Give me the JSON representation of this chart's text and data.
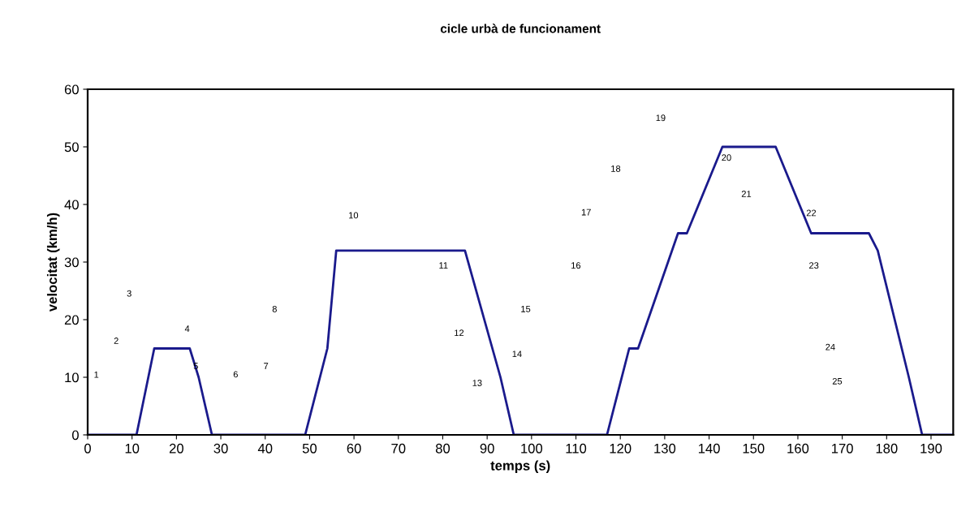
{
  "chart_data": {
    "type": "line",
    "title": "cicle urbà de funcionament",
    "xlabel": "temps (s)",
    "ylabel": "velocitat (km/h)",
    "x": [
      0,
      11,
      15,
      23,
      25,
      28,
      49,
      54,
      56,
      85,
      93,
      96,
      117,
      122,
      124,
      133,
      135,
      143,
      155,
      163,
      176,
      178,
      185,
      188,
      195
    ],
    "series": [
      {
        "color": "#1a1a8c",
        "values": [
          0,
          0,
          15,
          15,
          10,
          0,
          0,
          15,
          32,
          32,
          10,
          0,
          0,
          15,
          15,
          35,
          35,
          50,
          50,
          35,
          35,
          32,
          10,
          0,
          0
        ]
      }
    ],
    "xlim": [
      0,
      195
    ],
    "xticks": [
      0,
      10,
      20,
      30,
      40,
      50,
      60,
      70,
      80,
      90,
      100,
      110,
      120,
      130,
      140,
      150,
      160,
      170,
      180,
      190
    ],
    "ylim": [
      0,
      60
    ],
    "yticks": [
      0,
      10,
      20,
      30,
      40,
      50,
      60
    ],
    "grid": false,
    "marker": "none",
    "line_style": "solid",
    "annotations": [
      "1",
      "2",
      "3",
      "4",
      "5",
      "6",
      "7",
      "8",
      "10",
      "11",
      "12",
      "13",
      "14",
      "15",
      "16",
      "17",
      "18",
      "19",
      "20",
      "21",
      "22",
      "23",
      "24",
      "25"
    ]
  }
}
